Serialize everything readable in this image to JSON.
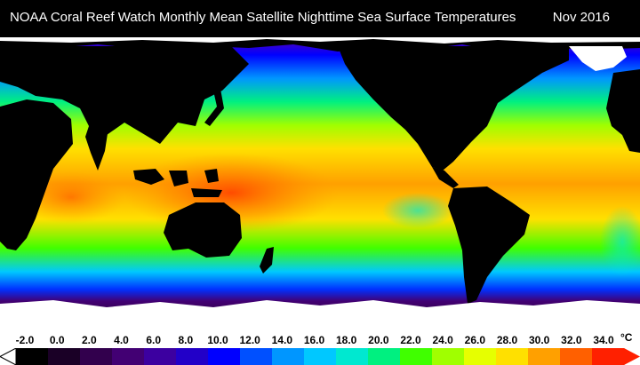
{
  "header": {
    "title": "NOAA Coral Reef Watch Monthly Mean Satellite Nighttime Sea Surface Temperatures",
    "date": "Nov 2016"
  },
  "map_data": {
    "type": "heatmap",
    "projection": "equirectangular",
    "extent": {
      "lon": [
        -180,
        180
      ],
      "lat": [
        -90,
        90
      ]
    },
    "land_color": "#000000",
    "ice_color": "#ffffff"
  },
  "legend": {
    "unit": "°C",
    "ticks": [
      "-2.0",
      "0.0",
      "2.0",
      "4.0",
      "6.0",
      "8.0",
      "10.0",
      "12.0",
      "14.0",
      "16.0",
      "18.0",
      "20.0",
      "22.0",
      "24.0",
      "26.0",
      "28.0",
      "30.0",
      "32.0",
      "34.0"
    ],
    "min": -2,
    "max": 34,
    "colors": [
      "#000000",
      "#1a0026",
      "#32004d",
      "#420073",
      "#3c00a0",
      "#2200c8",
      "#0000ff",
      "#0050ff",
      "#0096ff",
      "#00c8ff",
      "#00e8d0",
      "#00f080",
      "#40ff00",
      "#a0ff00",
      "#e6ff00",
      "#ffe000",
      "#ffa000",
      "#ff6000",
      "#ff2000"
    ]
  }
}
